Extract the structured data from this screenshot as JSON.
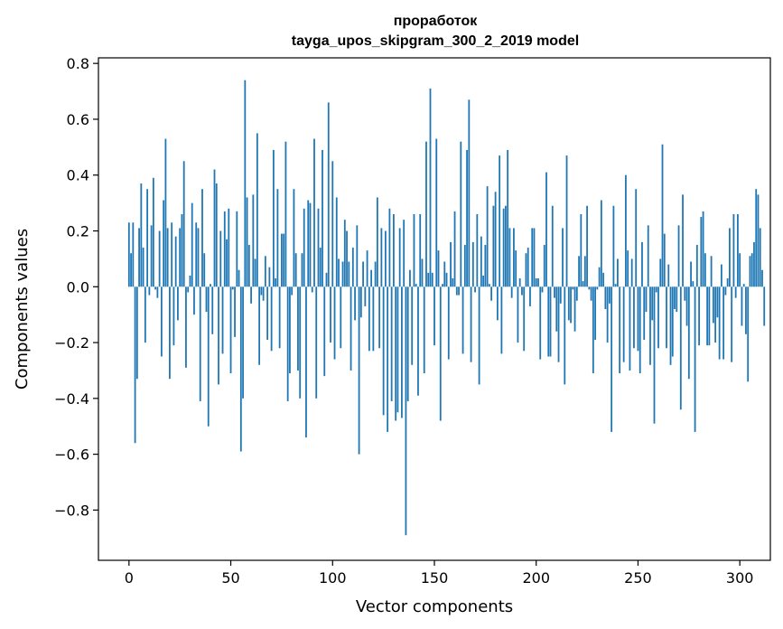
{
  "chart_data": {
    "type": "bar",
    "title": "проработок",
    "subtitle": "tayga_upos_skipgram_300_2_2019 model",
    "xlabel": "Vector components",
    "ylabel": "Components values",
    "xlim": [
      -15,
      315
    ],
    "ylim": [
      -0.98,
      0.82
    ],
    "xticks": [
      0,
      50,
      100,
      150,
      200,
      250,
      300
    ],
    "xtick_labels": [
      "0",
      "50",
      "100",
      "150",
      "200",
      "250",
      "300"
    ],
    "yticks": [
      -0.8,
      -0.6,
      -0.4,
      -0.2,
      0.0,
      0.2,
      0.4,
      0.6,
      0.8
    ],
    "ytick_labels": [
      "−0.8",
      "−0.6",
      "−0.4",
      "−0.2",
      "0.0",
      "0.2",
      "0.4",
      "0.6",
      "0.8"
    ],
    "grid": false,
    "bar_color": "#1f77b4",
    "values": [
      0.23,
      0.12,
      0.23,
      -0.56,
      -0.33,
      0.21,
      0.37,
      0.14,
      -0.2,
      0.35,
      -0.03,
      0.22,
      0.39,
      -0.01,
      -0.04,
      0.2,
      -0.25,
      0.31,
      0.53,
      0.21,
      -0.33,
      0.23,
      -0.21,
      0.18,
      -0.12,
      0.21,
      0.26,
      0.45,
      -0.29,
      -0.02,
      0.04,
      0.3,
      -0.1,
      0.23,
      0.21,
      -0.41,
      0.35,
      0.12,
      -0.09,
      -0.5,
      0.01,
      -0.17,
      0.42,
      0.37,
      -0.35,
      0.2,
      -0.24,
      0.27,
      0.17,
      0.28,
      -0.31,
      -0.01,
      -0.18,
      0.27,
      0.06,
      -0.59,
      -0.4,
      0.74,
      0.32,
      0.15,
      -0.06,
      0.33,
      0.1,
      0.55,
      -0.28,
      -0.03,
      -0.05,
      0.11,
      -0.19,
      0.07,
      -0.23,
      0.49,
      0.03,
      0.35,
      -0.22,
      0.19,
      0.19,
      0.52,
      -0.41,
      -0.31,
      -0.03,
      0.35,
      0.12,
      -0.3,
      -0.4,
      0.12,
      0.28,
      -0.54,
      0.31,
      0.3,
      -0.02,
      0.53,
      -0.4,
      0.28,
      0.14,
      0.49,
      -0.32,
      0.05,
      0.66,
      -0.2,
      0.45,
      -0.26,
      0.32,
      0.1,
      -0.22,
      0.09,
      0.24,
      0.2,
      0.09,
      -0.3,
      0.14,
      -0.12,
      0.22,
      -0.6,
      -0.11,
      0.09,
      -0.07,
      0.13,
      -0.23,
      0.06,
      -0.23,
      0.09,
      0.32,
      -0.22,
      0.21,
      -0.46,
      0.2,
      -0.52,
      0.28,
      -0.41,
      0.26,
      -0.48,
      -0.45,
      0.21,
      -0.47,
      0.24,
      -0.89,
      -0.41,
      0.06,
      -0.28,
      0.26,
      0.01,
      -0.39,
      0.26,
      0.1,
      -0.31,
      0.52,
      0.05,
      0.71,
      0.05,
      -0.21,
      0.53,
      0.13,
      -0.48,
      0.01,
      0.09,
      0.05,
      -0.26,
      0.16,
      0.03,
      0.27,
      -0.03,
      -0.03,
      0.52,
      -0.24,
      0.15,
      0.49,
      0.67,
      -0.27,
      0.16,
      -0.02,
      0.26,
      -0.35,
      0.18,
      0.04,
      0.15,
      0.36,
      0.01,
      -0.05,
      0.29,
      0.34,
      -0.12,
      0.47,
      -0.24,
      0.28,
      0.29,
      0.49,
      0.21,
      -0.04,
      0.21,
      0.13,
      -0.2,
      0.03,
      -0.03,
      -0.23,
      0.12,
      0.14,
      -0.07,
      0.21,
      0.21,
      0.03,
      0.03,
      -0.26,
      -0.02,
      0.15,
      0.41,
      -0.25,
      -0.25,
      0.29,
      -0.04,
      -0.16,
      -0.27,
      -0.06,
      0.21,
      -0.35,
      0.47,
      -0.12,
      -0.13,
      -0.01,
      -0.16,
      -0.05,
      0.11,
      0.26,
      0.02,
      0.11,
      0.29,
      -0.01,
      -0.05,
      -0.31,
      -0.19,
      -0.01,
      0.07,
      0.31,
      0.05,
      -0.08,
      -0.2,
      -0.06,
      -0.52,
      0.29,
      0.01,
      0.1,
      -0.31,
      0.0,
      -0.27,
      0.4,
      0.13,
      -0.3,
      0.1,
      -0.22,
      0.35,
      -0.23,
      -0.31,
      0.16,
      -0.19,
      -0.09,
      0.22,
      -0.28,
      -0.12,
      -0.49,
      -0.02,
      -0.22,
      0.1,
      0.51,
      0.19,
      -0.22,
      0.08,
      -0.28,
      -0.25,
      -0.08,
      -0.09,
      0.22,
      -0.44,
      0.33,
      -0.05,
      -0.14,
      -0.33,
      0.09,
      0.02,
      -0.52,
      0.15,
      -0.21,
      0.25,
      0.27,
      0.12,
      -0.21,
      -0.21,
      0.11,
      -0.13,
      -0.2,
      -0.11,
      -0.26,
      0.08,
      -0.26,
      -0.03,
      0.03,
      0.21,
      -0.27,
      0.26,
      -0.04,
      0.26,
      0.12,
      -0.14,
      0.01,
      -0.17,
      -0.34,
      0.11,
      0.12,
      0.16,
      0.35,
      0.33,
      0.21,
      0.06,
      -0.14
    ]
  }
}
